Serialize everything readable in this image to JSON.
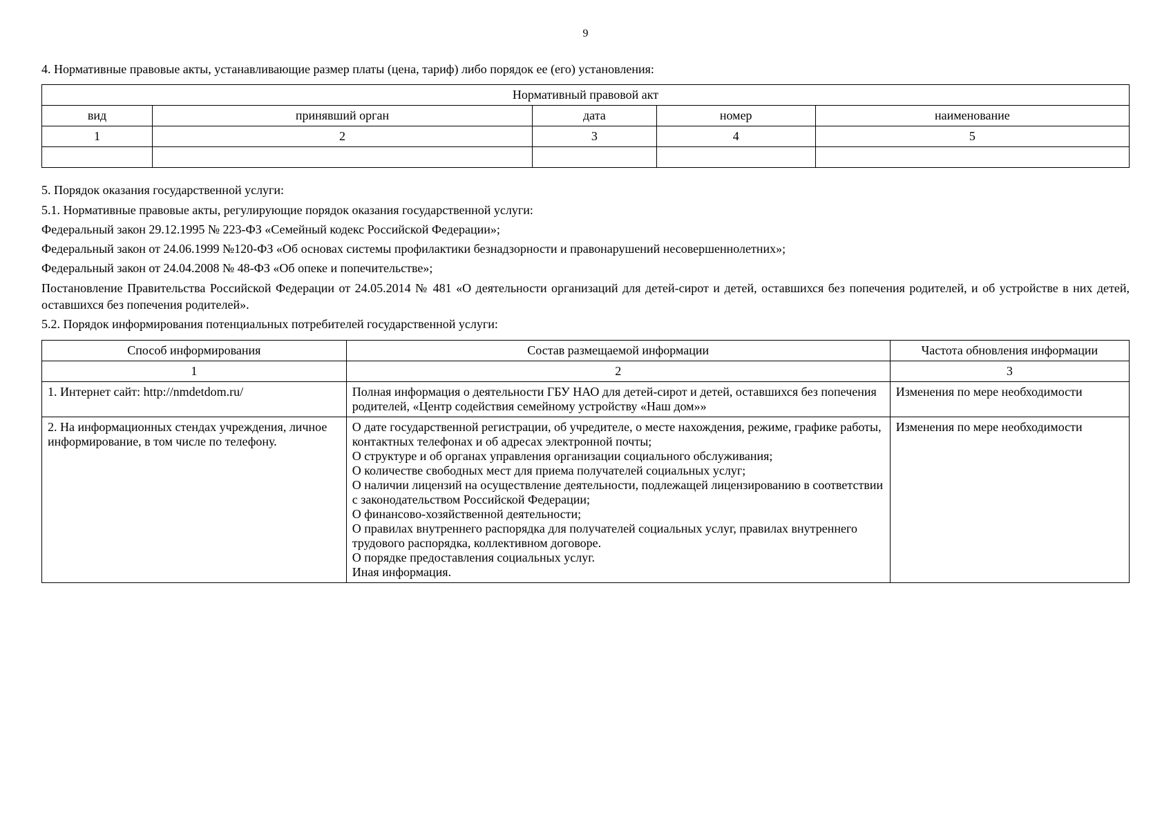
{
  "pageNumber": "9",
  "section4": {
    "title": "4. Нормативные правовые акты, устанавливающие размер платы (цена, тариф) либо порядок ее (его) установления:",
    "tableHeader": "Нормативный правовой акт",
    "columns": {
      "c1": "вид",
      "c2": "принявший орган",
      "c3": "дата",
      "c4": "номер",
      "c5": "наименование"
    },
    "nums": {
      "n1": "1",
      "n2": "2",
      "n3": "3",
      "n4": "4",
      "n5": "5"
    }
  },
  "section5": {
    "title": "5. Порядок оказания государственной услуги:",
    "p51": "5.1. Нормативные правовые акты, регулирующие порядок оказания государственной услуги:",
    "law1": "Федеральный закон 29.12.1995 № 223-ФЗ «Семейный кодекс Российской Федерации»;",
    "law2": "Федеральный закон от 24.06.1999 №120-ФЗ «Об основах системы профилактики безнадзорности и правонарушений несовершеннолетних»;",
    "law3": "Федеральный закон от 24.04.2008 № 48-ФЗ «Об опеке и попечительстве»;",
    "law4": "Постановление Правительства Российской Федерации от 24.05.2014 № 481 «О деятельности организаций для детей-сирот и детей, оставшихся без попечения родителей, и об устройстве в них детей, оставшихся без попечения родителей».",
    "p52": "5.2. Порядок информирования потенциальных потребителей государственной услуги:"
  },
  "table2": {
    "headers": {
      "h1": "Способ информирования",
      "h2": "Состав размещаемой информации",
      "h3": "Частота обновления информации"
    },
    "nums": {
      "n1": "1",
      "n2": "2",
      "n3": "3"
    },
    "rows": [
      {
        "method": "1. Интернет сайт: http://nmdetdom.ru/",
        "content": "Полная информация о деятельности ГБУ НАО для детей-сирот и детей, оставшихся без попечения родителей, «Центр содействия семейному устройству «Наш дом»»",
        "freq": "Изменения по мере необходимости"
      },
      {
        "method": "2. На информационных стендах учреждения, личное информирование, в том числе по телефону.",
        "content": "О дате государственной регистрации, об учредителе, о месте нахождения, режиме, графике работы, контактных телефонах и об адресах электронной почты;\nО структуре и об органах управления организации социального обслуживания;\nО количестве свободных мест для приема получателей социальных услуг;\nО наличии лицензий на осуществление деятельности, подлежащей лицензированию в соответствии с законодательством Российской Федерации;\nО финансово-хозяйственной деятельности;\nО правилах внутреннего распорядка для получателей социальных услуг, правилах внутреннего трудового распорядка, коллективном договоре.\nО порядке предоставления социальных услуг.\nИная информация.",
        "freq": "Изменения по мере необходимости"
      }
    ]
  }
}
